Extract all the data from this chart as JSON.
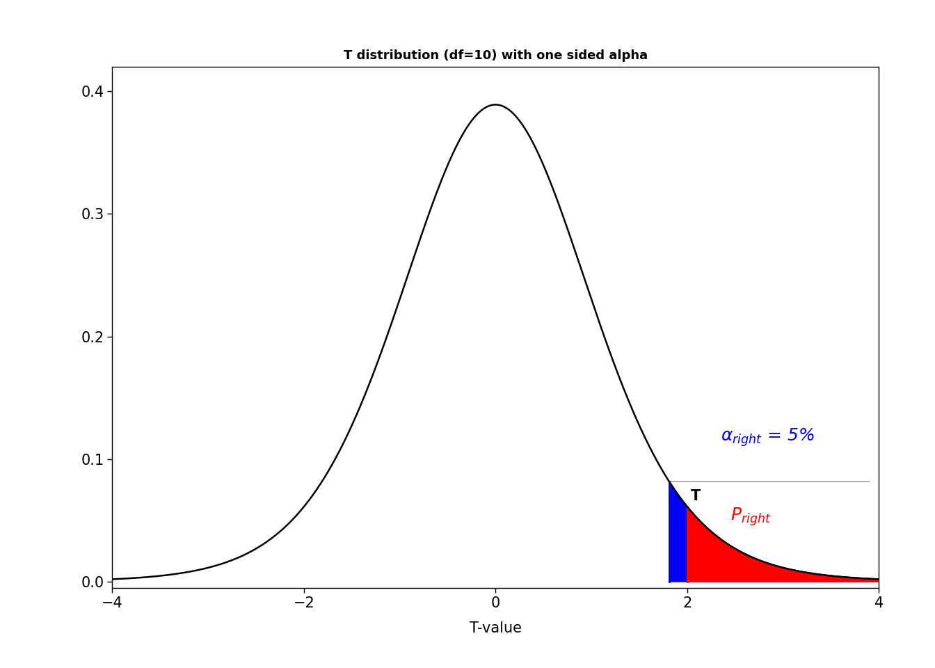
{
  "title": "T distribution (df=10) with one sided alpha",
  "xlabel": "T-value",
  "df": 10,
  "x_min": -4,
  "x_max": 4,
  "y_min": -0.005,
  "y_max": 0.42,
  "alpha": 0.05,
  "t_obs": 2.0,
  "xticks": [
    -4,
    -2,
    0,
    2,
    4
  ],
  "yticks": [
    0.0,
    0.1,
    0.2,
    0.3,
    0.4
  ],
  "blue_color": "#0000FF",
  "red_color": "#FF0000",
  "gray_color": "#A0A0A0",
  "background_color": "#FFFFFF",
  "line_color": "#000000",
  "title_fontsize": 13,
  "axis_label_fontsize": 15,
  "tick_fontsize": 15,
  "annot_fontsize": 18,
  "t_label_fontsize": 15
}
